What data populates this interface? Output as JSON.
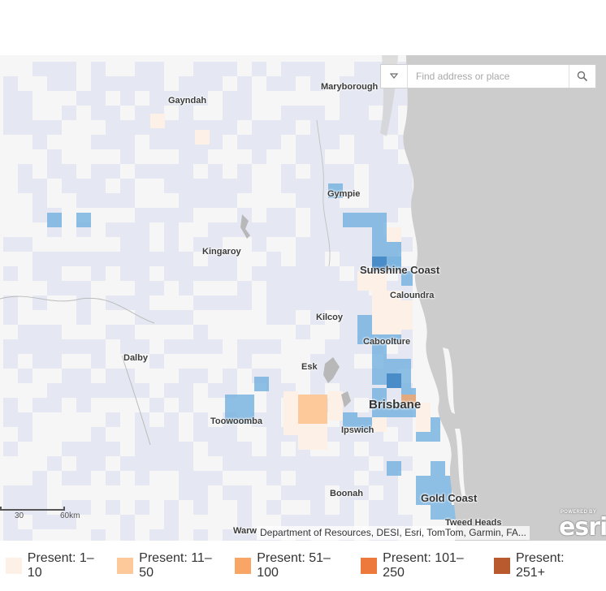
{
  "search": {
    "placeholder": "Find address or place"
  },
  "places": {
    "maryborough": "Maryborough",
    "gayndah": "Gayndah",
    "gympie": "Gympie",
    "kingaroy": "Kingaroy",
    "sunshine_coast": "Sunshine Coast",
    "caloundra": "Caloundra",
    "kilcoy": "Kilcoy",
    "caboolture": "Caboolture",
    "dalby": "Dalby",
    "esk": "Esk",
    "brisbane": "Brisbane",
    "toowoomba": "Toowoomba",
    "ipswich": "Ipswich",
    "boonah": "Boonah",
    "gold_coast": "Gold Coast",
    "tweed_heads": "Tweed Heads",
    "warwick_partial": "Warw"
  },
  "scale": {
    "mid": "30",
    "end": "60km"
  },
  "attribution": "Department of Resources, DESI, Esri, TomTom, Garmin, FA...",
  "esri": {
    "powered": "POWERED BY",
    "logo": "esri"
  },
  "legend": [
    {
      "label": "Present: 1–10",
      "color": "#fdf0e6"
    },
    {
      "label": "Present: 11–50",
      "color": "#fdc99b"
    },
    {
      "label": "Present: 51–100",
      "color": "#f9a566"
    },
    {
      "label": "Present: 101–250",
      "color": "#ed7a3c"
    },
    {
      "label": "Present: 251+",
      "color": "#b85a2e"
    }
  ],
  "colors": {
    "absent": "#e5e8f2",
    "recorded": "#7ab4e0",
    "recorded_dark": "#4a8cc7",
    "sea": "#cccccc"
  }
}
